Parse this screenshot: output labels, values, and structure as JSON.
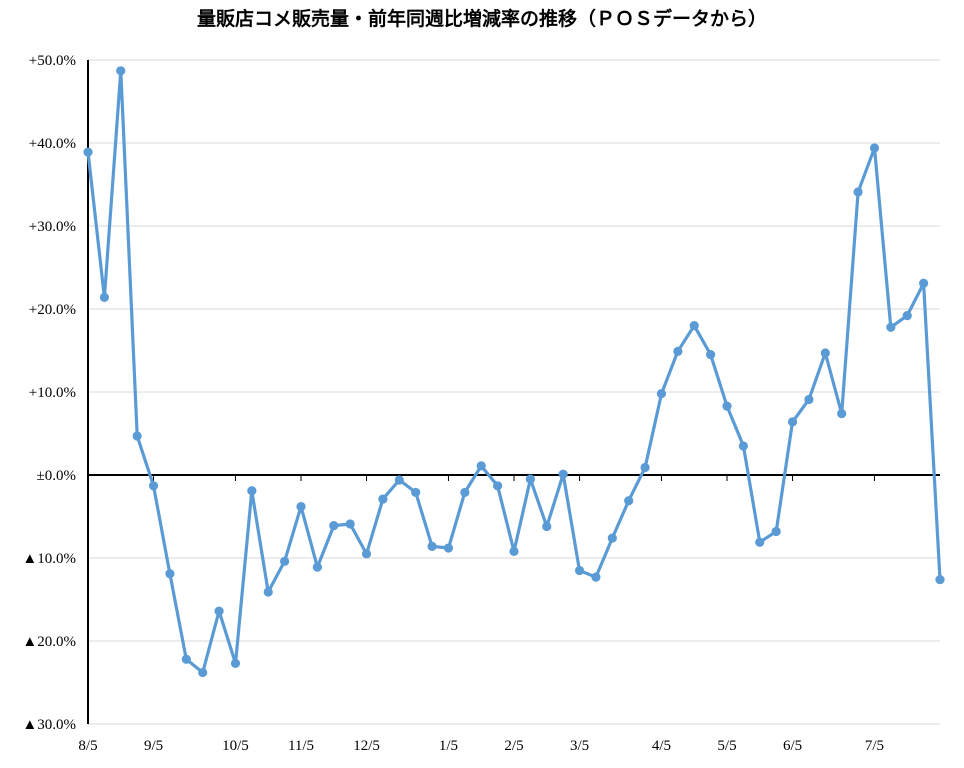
{
  "chart_data": {
    "type": "line",
    "title": "量販店コメ販売量・前年同週比増減率の推移（ＰＯＳデータから）",
    "xlabel": "",
    "ylabel": "",
    "ylim": [
      -30,
      50
    ],
    "yticks": [
      {
        "value": 50,
        "label": "+50.0%"
      },
      {
        "value": 40,
        "label": "+40.0%"
      },
      {
        "value": 30,
        "label": "+30.0%"
      },
      {
        "value": 20,
        "label": "+20.0%"
      },
      {
        "value": 10,
        "label": "+10.0%"
      },
      {
        "value": 0,
        "label": "±0.0%"
      },
      {
        "value": -10,
        "label": "▲10.0%"
      },
      {
        "value": -20,
        "label": "▲20.0%"
      },
      {
        "value": -30,
        "label": "▲30.0%"
      }
    ],
    "xticks": [
      {
        "index": 0,
        "label": "8/5"
      },
      {
        "index": 4,
        "label": "9/5"
      },
      {
        "index": 9,
        "label": "10/5"
      },
      {
        "index": 13,
        "label": "11/5"
      },
      {
        "index": 17,
        "label": "12/5"
      },
      {
        "index": 22,
        "label": "1/5"
      },
      {
        "index": 26,
        "label": "2/5"
      },
      {
        "index": 30,
        "label": "3/5"
      },
      {
        "index": 35,
        "label": "4/5"
      },
      {
        "index": 39,
        "label": "5/5"
      },
      {
        "index": 43,
        "label": "6/5"
      },
      {
        "index": 48,
        "label": "7/5"
      }
    ],
    "grid": true,
    "series": [
      {
        "color": "#5b9bd5",
        "values": [
          38.9,
          21.4,
          48.7,
          4.7,
          -1.3,
          -11.9,
          -22.2,
          -23.8,
          -16.4,
          -22.7,
          -1.9,
          -14.1,
          -10.4,
          -3.8,
          -11.1,
          -6.1,
          -5.9,
          -9.5,
          -2.9,
          -0.6,
          -2.1,
          -8.6,
          -8.8,
          -2.1,
          1.1,
          -1.3,
          -9.2,
          -0.5,
          -6.2,
          0.1,
          -11.5,
          -12.3,
          -7.6,
          -3.1,
          0.9,
          9.8,
          14.9,
          18.0,
          14.5,
          8.3,
          3.5,
          -8.1,
          -6.8,
          6.4,
          9.1,
          14.7,
          7.4,
          34.1,
          39.4,
          17.8,
          19.2,
          23.1,
          -12.6
        ]
      }
    ]
  }
}
